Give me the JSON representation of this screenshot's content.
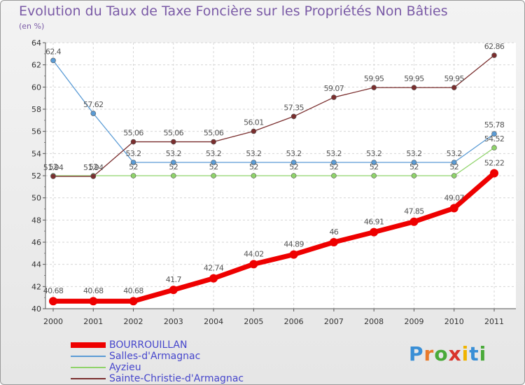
{
  "header": {
    "title": "Evolution du Taux de Taxe Foncière sur les Propriétés Non Bâties",
    "unit": "(en %)"
  },
  "logo": {
    "letters": [
      "P",
      "r",
      "o",
      "x",
      "i",
      "t",
      "i"
    ],
    "colors": [
      "#3a8fd6",
      "#e8792b",
      "#4aaa3a",
      "#d9342b",
      "#f0b400",
      "#3a8fd6",
      "#4aaa3a"
    ]
  },
  "chart_data": {
    "type": "line",
    "title": "Evolution du Taux de Taxe Foncière sur les Propriétés Non Bâties",
    "ylabel": "(en %)",
    "xlabel": "",
    "ylim": [
      40,
      64
    ],
    "yticks": [
      40,
      42,
      44,
      46,
      48,
      50,
      52,
      54,
      56,
      58,
      60,
      62,
      64
    ],
    "grid": true,
    "legend_position": "bottom-left",
    "categories": [
      "2000",
      "2001",
      "2002",
      "2003",
      "2004",
      "2005",
      "2006",
      "2007",
      "2008",
      "2009",
      "2010",
      "2011"
    ],
    "series": [
      {
        "name": "BOURROUILLAN",
        "color": "#ee0000",
        "values": [
          40.68,
          40.68,
          40.68,
          41.7,
          42.74,
          44.02,
          44.89,
          46,
          46.91,
          47.85,
          49.07,
          52.22
        ],
        "labels": [
          "40.68",
          "40.68",
          "40.68",
          "41.7",
          "42.74",
          "44.02",
          "44.89",
          "46",
          "46.91",
          "47.85",
          "49.07",
          "52.22"
        ]
      },
      {
        "name": "Salles-d'Armagnac",
        "color": "#5a9bd5",
        "values": [
          62.4,
          57.62,
          53.2,
          53.2,
          53.2,
          53.2,
          53.2,
          53.2,
          53.2,
          53.2,
          53.2,
          55.78
        ],
        "labels": [
          "62.4",
          "57.62",
          "53.2",
          "53.2",
          "53.2",
          "53.2",
          "53.2",
          "53.2",
          "53.2",
          "53.2",
          "53.2",
          "55.78"
        ]
      },
      {
        "name": "Ayzieu",
        "color": "#8fd36a",
        "values": [
          52,
          52,
          52,
          52,
          52,
          52,
          52,
          52,
          52,
          52,
          52,
          54.52
        ],
        "labels": [
          "52",
          "52",
          "52",
          "52",
          "52",
          "52",
          "52",
          "52",
          "52",
          "52",
          "52",
          "54.52"
        ]
      },
      {
        "name": "Sainte-Christie-d'Armagnac",
        "color": "#7a2e2e",
        "values": [
          51.94,
          51.94,
          55.06,
          55.06,
          55.06,
          56.01,
          57.35,
          59.07,
          59.95,
          59.95,
          59.95,
          62.86
        ],
        "labels": [
          "51.94",
          "51.94",
          "55.06",
          "55.06",
          "55.06",
          "56.01",
          "57.35",
          "59.07",
          "59.95",
          "59.95",
          "59.95",
          "62.86"
        ]
      }
    ]
  }
}
